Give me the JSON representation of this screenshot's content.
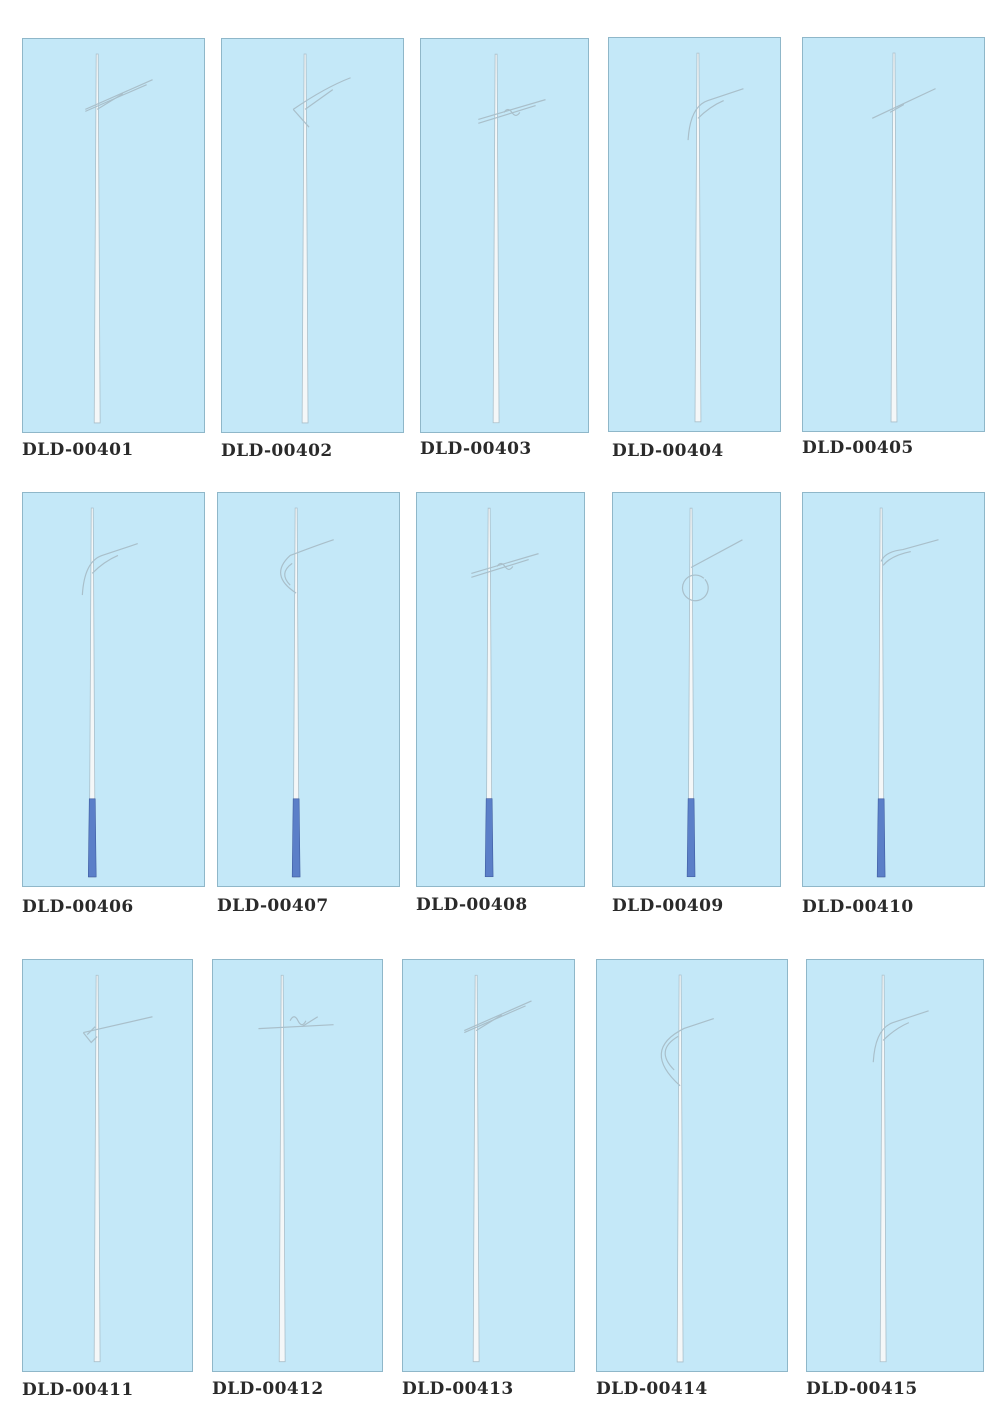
{
  "catalog": {
    "items": [
      {
        "code": "DLD-00401",
        "arm": "bracket",
        "base_color": ""
      },
      {
        "code": "DLD-00402",
        "arm": "brace",
        "base_color": ""
      },
      {
        "code": "DLD-00403",
        "arm": "scroll-bracket",
        "base_color": ""
      },
      {
        "code": "DLD-00404",
        "arm": "curve",
        "base_color": ""
      },
      {
        "code": "DLD-00405",
        "arm": "straight",
        "base_color": ""
      },
      {
        "code": "DLD-00406",
        "arm": "curve",
        "base_color": "#5b7fc8"
      },
      {
        "code": "DLD-00407",
        "arm": "arc",
        "base_color": "#5b7fc8"
      },
      {
        "code": "DLD-00408",
        "arm": "scroll-bracket",
        "base_color": "#5b7fc8"
      },
      {
        "code": "DLD-00409",
        "arm": "circle",
        "base_color": "#5b7fc8"
      },
      {
        "code": "DLD-00410",
        "arm": "swan",
        "base_color": "#5b7fc8"
      },
      {
        "code": "DLD-00411",
        "arm": "bracket-ornament",
        "base_color": ""
      },
      {
        "code": "DLD-00412",
        "arm": "cross-ornament",
        "base_color": ""
      },
      {
        "code": "DLD-00413",
        "arm": "bracket",
        "base_color": ""
      },
      {
        "code": "DLD-00414",
        "arm": "long-arc",
        "base_color": ""
      },
      {
        "code": "DLD-00415",
        "arm": "curve",
        "base_color": ""
      }
    ]
  },
  "colors": {
    "panel_background": "#c4e8f8",
    "pole": "#f4f7f8",
    "pole_outline": "#a9bfca",
    "label_text": "#2a2a2a"
  }
}
